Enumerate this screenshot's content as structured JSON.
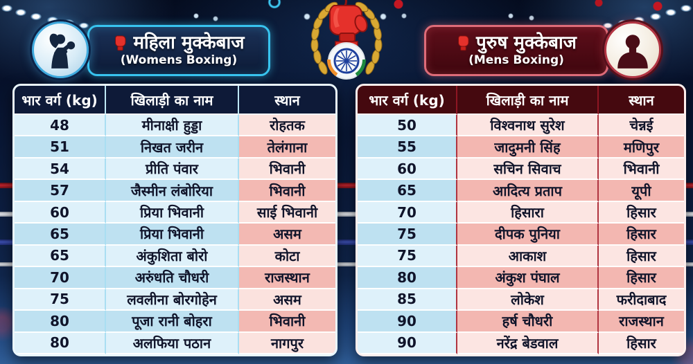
{
  "branding": {
    "accent_womens": "#38c4ef",
    "accent_mens": "#8c1423",
    "glove_red": "#e5312b",
    "wreath_gold": "#d9a833",
    "icons": {
      "womens_badge": "female-boxer-silhouette",
      "mens_badge": "male-bust-silhouette",
      "title_glove": "red-boxing-glove",
      "center_emblem": "boxing-glove-laurel-wreath-ashoka-chakra"
    }
  },
  "left_table": {
    "title_hi": "महिला मुक्केबाज",
    "title_en": "(Womens Boxing)",
    "columns": [
      "भार वर्ग (kg)",
      "खिलाड़ी का नाम",
      "स्थान"
    ],
    "rows": [
      {
        "weight": "48",
        "name": "मीनाक्षी हुड्डा",
        "place": "रोहतक"
      },
      {
        "weight": "51",
        "name": "निखत जरीन",
        "place": "तेलंगाना"
      },
      {
        "weight": "54",
        "name": "प्रीति पंवार",
        "place": "भिवानी"
      },
      {
        "weight": "57",
        "name": "जैस्मीन लंबोरिया",
        "place": "भिवानी"
      },
      {
        "weight": "60",
        "name": "प्रिया भिवानी",
        "place": "साई भिवानी"
      },
      {
        "weight": "65",
        "name": "प्रिया भिवानी",
        "place": "असम"
      },
      {
        "weight": "65",
        "name": "अंकुशिता बोरो",
        "place": "कोटा"
      },
      {
        "weight": "70",
        "name": "अरुंधति चौधरी",
        "place": "राजस्थान"
      },
      {
        "weight": "75",
        "name": "लवलीना बोरगोहेन",
        "place": "असम"
      },
      {
        "weight": "80",
        "name": "पूजा रानी बोहरा",
        "place": "भिवानी"
      },
      {
        "weight": "80",
        "name": "अलफिया पठान",
        "place": "नागपुर"
      }
    ]
  },
  "right_table": {
    "title_hi": "पुरुष मुक्केबाज",
    "title_en": "(Mens Boxing)",
    "columns": [
      "भार वर्ग (kg)",
      "खिलाड़ी का नाम",
      "स्थान"
    ],
    "rows": [
      {
        "weight": "50",
        "name": "विश्वनाथ सुरेश",
        "place": "चेन्नई"
      },
      {
        "weight": "55",
        "name": "जादुमनी सिंह",
        "place": "मणिपुर"
      },
      {
        "weight": "60",
        "name": "सचिन सिवाच",
        "place": "भिवानी"
      },
      {
        "weight": "65",
        "name": "आदित्य प्रताप",
        "place": "यूपी"
      },
      {
        "weight": "70",
        "name": "हिसारा",
        "place": "हिसार"
      },
      {
        "weight": "75",
        "name": "दीपक पुनिया",
        "place": "हिसार"
      },
      {
        "weight": "75",
        "name": "आकाश",
        "place": "हिसार"
      },
      {
        "weight": "80",
        "name": "अंकुश पंघाल",
        "place": "हिसार"
      },
      {
        "weight": "85",
        "name": "लोकेश",
        "place": "फरीदाबाद"
      },
      {
        "weight": "90",
        "name": "हर्ष चौधरी",
        "place": "राजस्थान"
      },
      {
        "weight": "90",
        "name": "नरेंद्र बेडवाल",
        "place": "हिसार"
      }
    ]
  }
}
